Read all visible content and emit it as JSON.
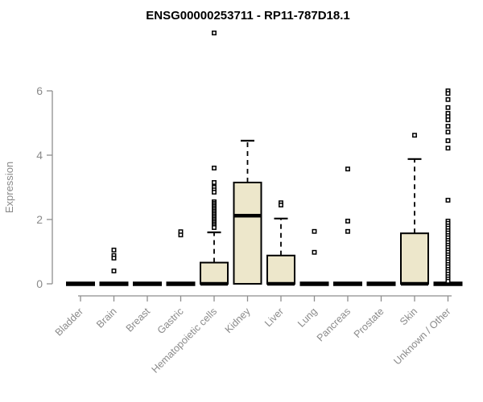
{
  "title": "ENSG00000253711 - RP11-787D18.1",
  "colors": {
    "title_text": "#000000",
    "axis": "#8E8E8E",
    "tick_text": "#8A8A8A",
    "box_fill": "#EDE7CB",
    "box_border": "#000000"
  },
  "chart_data": {
    "type": "boxplot",
    "title": "ENSG00000253711 - RP11-787D18.1",
    "xlabel": "",
    "ylabel": "Expression",
    "ylim": [
      0,
      6
    ],
    "yticks": [
      0,
      2,
      4,
      6
    ],
    "grid": false,
    "legend": "none",
    "categories": [
      "Bladder",
      "Brain",
      "Breast",
      "Gastric",
      "Hematopoietic cells",
      "Kidney",
      "Liver",
      "Lung",
      "Pancreas",
      "Prostate",
      "Skin",
      "Unknown / Other"
    ],
    "boxes": [
      {
        "category": "Bladder",
        "q1": 0,
        "median": 0,
        "q3": 0,
        "whisker_low": 0,
        "whisker_high": 0,
        "outliers": []
      },
      {
        "category": "Brain",
        "q1": 0,
        "median": 0,
        "q3": 0,
        "whisker_low": 0,
        "whisker_high": 0,
        "outliers": [
          1.05,
          0.88,
          0.8,
          0.4
        ]
      },
      {
        "category": "Breast",
        "q1": 0,
        "median": 0,
        "q3": 0,
        "whisker_low": 0,
        "whisker_high": 0,
        "outliers": []
      },
      {
        "category": "Gastric",
        "q1": 0,
        "median": 0,
        "q3": 0,
        "whisker_low": 0,
        "whisker_high": 0,
        "outliers": [
          1.62,
          1.52
        ]
      },
      {
        "category": "Hematopoietic cells",
        "q1": 0,
        "median": 0,
        "q3": 0.66,
        "whisker_low": 0,
        "whisker_high": 1.6,
        "outliers": [
          7.8,
          3.6,
          3.15,
          3.0,
          2.92,
          2.85,
          2.55,
          2.5,
          2.45,
          2.4,
          2.35,
          2.3,
          2.25,
          2.2,
          2.15,
          2.1,
          2.05,
          2.0,
          1.95,
          1.9,
          1.85,
          1.8,
          1.75
        ]
      },
      {
        "category": "Kidney",
        "q1": 0,
        "median": 2.12,
        "q3": 3.15,
        "whisker_low": 0,
        "whisker_high": 4.45,
        "outliers": []
      },
      {
        "category": "Liver",
        "q1": 0,
        "median": 0,
        "q3": 0.88,
        "whisker_low": 0,
        "whisker_high": 2.03,
        "outliers": [
          2.52,
          2.45
        ]
      },
      {
        "category": "Lung",
        "q1": 0,
        "median": 0,
        "q3": 0,
        "whisker_low": 0,
        "whisker_high": 0,
        "outliers": [
          1.63,
          0.98
        ]
      },
      {
        "category": "Pancreas",
        "q1": 0,
        "median": 0,
        "q3": 0,
        "whisker_low": 0,
        "whisker_high": 0,
        "outliers": [
          3.57,
          1.95,
          1.63
        ]
      },
      {
        "category": "Prostate",
        "q1": 0,
        "median": 0,
        "q3": 0,
        "whisker_low": 0,
        "whisker_high": 0,
        "outliers": []
      },
      {
        "category": "Skin",
        "q1": 0,
        "median": 0,
        "q3": 1.57,
        "whisker_low": 0,
        "whisker_high": 3.88,
        "outliers": [
          4.62
        ]
      },
      {
        "category": "Unknown / Other",
        "q1": 0,
        "median": 0,
        "q3": 0,
        "whisker_low": 0,
        "whisker_high": 0,
        "outliers": [
          6.0,
          5.92,
          5.73,
          5.48,
          5.3,
          5.2,
          5.1,
          4.9,
          4.72,
          4.45,
          4.22,
          2.6,
          1.95,
          1.88,
          1.8,
          1.73,
          1.65,
          1.58,
          1.5,
          1.43,
          1.35,
          1.28,
          1.2,
          1.13,
          1.05,
          0.98,
          0.9,
          0.83,
          0.75,
          0.68,
          0.6,
          0.53,
          0.45,
          0.38,
          0.3,
          0.22,
          0.15,
          0.08
        ]
      }
    ]
  }
}
